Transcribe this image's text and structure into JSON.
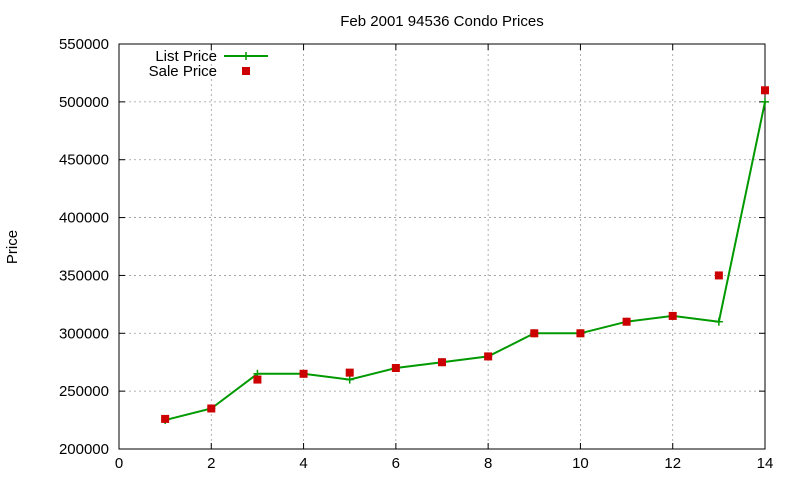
{
  "chart_data": {
    "type": "line",
    "title": "Feb 2001 94536 Condo Prices",
    "xlabel": "",
    "ylabel": "Price",
    "xlim": [
      0,
      14
    ],
    "ylim": [
      200000,
      550000
    ],
    "x_ticks": [
      0,
      2,
      4,
      6,
      8,
      10,
      12,
      14
    ],
    "y_ticks": [
      200000,
      250000,
      300000,
      350000,
      400000,
      450000,
      500000,
      550000
    ],
    "grid": true,
    "legend_position": "top-left",
    "series": [
      {
        "name": "List Price",
        "style": "line-with-plus-markers",
        "color": "#009900",
        "x": [
          1,
          2,
          3,
          4,
          5,
          6,
          7,
          8,
          9,
          10,
          11,
          12,
          13,
          14
        ],
        "y": [
          225000,
          235000,
          265000,
          265000,
          260000,
          270000,
          275000,
          280000,
          300000,
          300000,
          310000,
          315000,
          310000,
          500000
        ]
      },
      {
        "name": "Sale Price",
        "style": "square-markers",
        "color": "#cc0000",
        "x": [
          1,
          2,
          3,
          4,
          5,
          6,
          7,
          8,
          9,
          10,
          11,
          12,
          13,
          14
        ],
        "y": [
          226000,
          235000,
          260000,
          265000,
          266000,
          270000,
          275000,
          280000,
          300000,
          300000,
          310000,
          315000,
          350000,
          510000
        ]
      }
    ]
  }
}
